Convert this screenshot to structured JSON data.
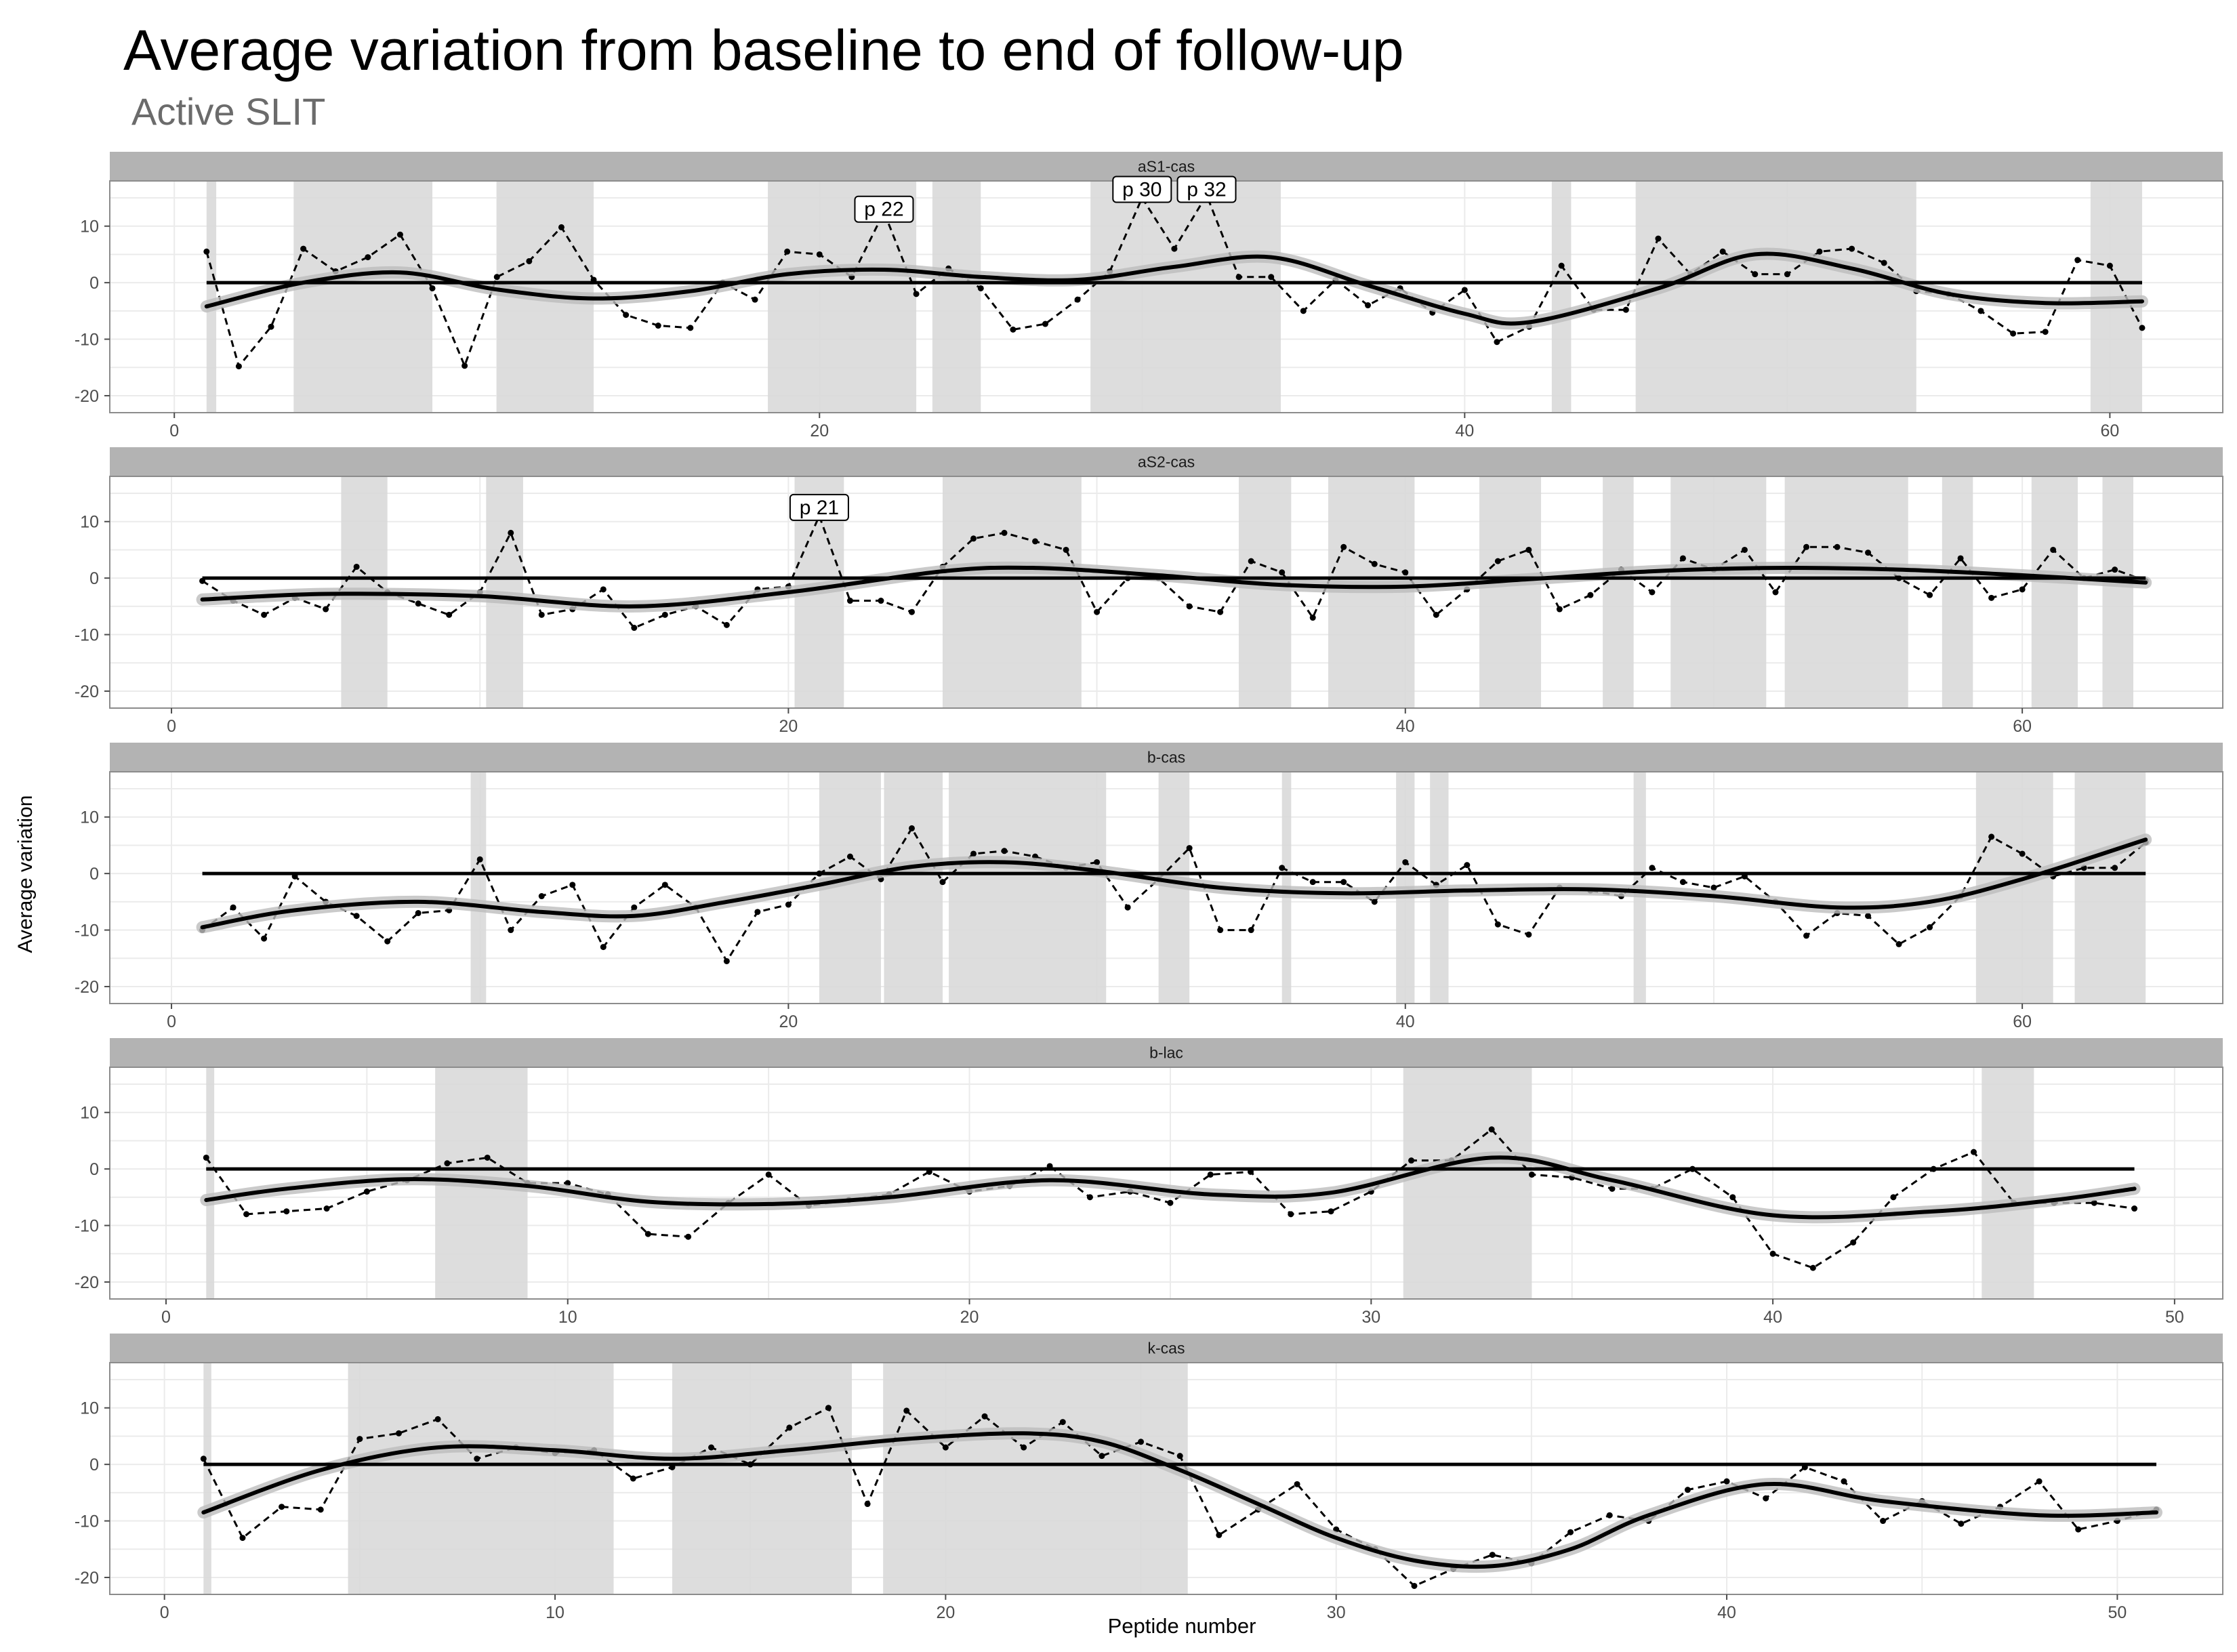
{
  "title": "Average variation from baseline to end of follow-up",
  "subtitle": "Active SLIT",
  "ylabel": "Average variation",
  "xlabel": "Peptide number",
  "colors": {
    "strip": "#b3b3b3",
    "band": "#d9d9d9",
    "line": "#000000",
    "grid": "#ebebeb"
  },
  "chart_data": [
    {
      "type": "line",
      "panel": "aS1-cas",
      "xlim": [
        -2,
        63.5
      ],
      "ylim": [
        -23,
        18
      ],
      "xticks": [
        0,
        20,
        40,
        60
      ],
      "yticks": [
        -20,
        -10,
        0,
        10
      ],
      "highlight_bands": [
        [
          1,
          1.3
        ],
        [
          3.7,
          8
        ],
        [
          10,
          13
        ],
        [
          18.4,
          23
        ],
        [
          23.5,
          25
        ],
        [
          28.4,
          34.3
        ],
        [
          42.7,
          43.3
        ],
        [
          45.3,
          54
        ],
        [
          59.4,
          61
        ]
      ],
      "annotations": [
        {
          "x": 22,
          "y": 13,
          "label": "p 22"
        },
        {
          "x": 30,
          "y": 16.5,
          "label": "p 30"
        },
        {
          "x": 32,
          "y": 16.5,
          "label": "p 32"
        }
      ],
      "series": [
        {
          "style": "dashed",
          "x": [
            1,
            2,
            3,
            4,
            5,
            6,
            7,
            8,
            9,
            10,
            11,
            12,
            13,
            14,
            15,
            16,
            17,
            18,
            19,
            20,
            21,
            22,
            23,
            24,
            25,
            26,
            27,
            28,
            29,
            30,
            31,
            32,
            33,
            34,
            35,
            36,
            37,
            38,
            39,
            40,
            41,
            42,
            43,
            44,
            45,
            46,
            47,
            48,
            49,
            50,
            51,
            52,
            53,
            54,
            55,
            56,
            57,
            58,
            59,
            60,
            61
          ],
          "y": [
            5.5,
            -14.8,
            -7.8,
            6,
            2,
            4.5,
            8.5,
            -1,
            -14.7,
            1,
            3.8,
            9.8,
            0.5,
            -5.7,
            -7.6,
            -8,
            0,
            -3,
            5.5,
            5,
            1,
            12.5,
            -2,
            2.5,
            -1,
            -8.3,
            -7.3,
            -3,
            2,
            15,
            6,
            15.5,
            1,
            1,
            -5,
            0.5,
            -4,
            -1,
            -5.3,
            -1.3,
            -10.5,
            -7.8,
            3,
            -4.8,
            -4.8,
            7.8,
            1.5,
            5.5,
            1.5,
            1.5,
            5.5,
            6,
            3.5,
            -1.5,
            -2,
            -5,
            -9,
            -8.7,
            4,
            3,
            -8
          ]
        },
        {
          "style": "smooth",
          "x": [
            1,
            4,
            7,
            10,
            13,
            16,
            19,
            22,
            25,
            28,
            31,
            34,
            37,
            40,
            42,
            46,
            49,
            52,
            55,
            58,
            61
          ],
          "y": [
            -4.2,
            0,
            1.8,
            -1.2,
            -2.8,
            -1.5,
            1.5,
            2.3,
            1,
            0.5,
            2.8,
            4.5,
            -0.5,
            -5.5,
            -7,
            -1,
            5,
            2.5,
            -2,
            -3.6,
            -3.3
          ]
        },
        {
          "style": "zero",
          "x": [
            1,
            61
          ],
          "y": [
            0,
            0
          ]
        }
      ]
    },
    {
      "type": "line",
      "panel": "aS2-cas",
      "xlim": [
        -2,
        66.5
      ],
      "ylim": [
        -23,
        18
      ],
      "xticks": [
        0,
        20,
        40,
        60
      ],
      "yticks": [
        -20,
        -10,
        0,
        10
      ],
      "highlight_bands": [
        [
          5.5,
          7
        ],
        [
          10.2,
          11.4
        ],
        [
          20.2,
          21.8
        ],
        [
          25,
          29.5
        ],
        [
          34.6,
          36.3
        ],
        [
          37.5,
          40.3
        ],
        [
          42.4,
          44.4
        ],
        [
          46.4,
          47.4
        ],
        [
          48.6,
          51.7
        ],
        [
          52.3,
          56.3
        ],
        [
          57.4,
          58.4
        ],
        [
          60.3,
          61.8
        ],
        [
          62.6,
          63.6
        ]
      ],
      "annotations": [
        {
          "x": 21,
          "y": 12.5,
          "label": "p 21"
        }
      ],
      "series": [
        {
          "style": "dashed",
          "x": [
            1,
            2,
            3,
            4,
            5,
            6,
            7,
            8,
            9,
            10,
            11,
            12,
            13,
            14,
            15,
            16,
            17,
            18,
            19,
            20,
            21,
            22,
            23,
            24,
            25,
            26,
            27,
            28,
            29,
            30,
            31,
            32,
            33,
            34,
            35,
            36,
            37,
            38,
            39,
            40,
            41,
            42,
            43,
            44,
            45,
            46,
            47,
            48,
            49,
            50,
            51,
            52,
            53,
            54,
            55,
            56,
            57,
            58,
            59,
            60,
            61,
            62,
            63,
            64
          ],
          "y": [
            -0.5,
            -4,
            -6.5,
            -3.5,
            -5.5,
            2,
            -2.5,
            -4.5,
            -6.5,
            -2.5,
            8,
            -6.5,
            -5.5,
            -2,
            -8.8,
            -6.5,
            -5,
            -8.3,
            -2,
            -1.5,
            11,
            -4,
            -4,
            -6,
            2,
            7,
            8,
            6.5,
            5,
            -6,
            0,
            0,
            -5,
            -6,
            3,
            1,
            -7,
            5.5,
            2.5,
            1,
            -6.5,
            -2,
            3,
            5,
            -5.5,
            -3,
            1.5,
            -2.5,
            3.5,
            1.5,
            5,
            -2.5,
            5.5,
            5.5,
            4.5,
            0,
            -3,
            3.5,
            -3.5,
            -2,
            5,
            0,
            1.5,
            -0.5
          ]
        },
        {
          "style": "smooth",
          "x": [
            1,
            5,
            10,
            15,
            20,
            25,
            28,
            32,
            36,
            40,
            44,
            48,
            52,
            56,
            60,
            64
          ],
          "y": [
            -3.8,
            -2.8,
            -3.2,
            -5,
            -2.5,
            1.2,
            1.8,
            0.5,
            -1.2,
            -1.5,
            -0.2,
            1.2,
            1.8,
            1.5,
            0.5,
            -0.8
          ]
        },
        {
          "style": "zero",
          "x": [
            1,
            64
          ],
          "y": [
            0,
            0
          ]
        }
      ]
    },
    {
      "type": "line",
      "panel": "b-cas",
      "xlim": [
        -2,
        66.5
      ],
      "ylim": [
        -23,
        18
      ],
      "xticks": [
        0,
        20,
        40,
        60
      ],
      "yticks": [
        -20,
        -10,
        0,
        10
      ],
      "highlight_bands": [
        [
          9.7,
          10.2
        ],
        [
          21,
          23
        ],
        [
          23.1,
          25
        ],
        [
          25.2,
          30.3
        ],
        [
          32,
          33
        ],
        [
          36,
          36.3
        ],
        [
          39.7,
          40.3
        ],
        [
          40.8,
          41.4
        ],
        [
          47.4,
          47.8
        ],
        [
          58.5,
          61
        ],
        [
          61.7,
          64
        ]
      ],
      "annotations": [],
      "series": [
        {
          "style": "dashed",
          "x": [
            1,
            2,
            3,
            4,
            5,
            6,
            7,
            8,
            9,
            10,
            11,
            12,
            13,
            14,
            15,
            16,
            17,
            18,
            19,
            20,
            21,
            22,
            23,
            24,
            25,
            26,
            27,
            28,
            29,
            30,
            31,
            32,
            33,
            34,
            35,
            36,
            37,
            38,
            39,
            40,
            41,
            42,
            43,
            44,
            45,
            46,
            47,
            48,
            49,
            50,
            51,
            52,
            53,
            54,
            55,
            56,
            57,
            58,
            59,
            60,
            61,
            62,
            63,
            64
          ],
          "y": [
            -10,
            -6,
            -11.5,
            -0.5,
            -5,
            -7.5,
            -12,
            -7,
            -6.5,
            2.5,
            -10,
            -4,
            -2,
            -13,
            -6,
            -2,
            -6,
            -15.5,
            -6.8,
            -5.5,
            0,
            3,
            -1,
            8,
            -1.5,
            3.5,
            4,
            3,
            1,
            2,
            -6,
            -1,
            4.5,
            -10,
            -10,
            1,
            -1.5,
            -1.5,
            -5,
            2,
            -2,
            1.5,
            -9,
            -10.8,
            -2.5,
            -3,
            -4,
            1,
            -1.5,
            -2.5,
            -0.5,
            -5,
            -11,
            -7,
            -7.5,
            -12.5,
            -9.5,
            -4,
            6.5,
            3.5,
            -0.5,
            1,
            1,
            5.5
          ]
        },
        {
          "style": "smooth",
          "x": [
            1,
            4,
            8,
            12,
            15,
            18,
            21,
            24,
            27,
            30,
            34,
            38,
            42,
            46,
            50,
            54,
            57,
            60,
            64
          ],
          "y": [
            -9.5,
            -6.5,
            -5,
            -6.8,
            -7.5,
            -5,
            -2,
            1.2,
            2,
            0.5,
            -2.5,
            -3.5,
            -3,
            -2.8,
            -4,
            -6,
            -5,
            -1,
            6
          ]
        },
        {
          "style": "zero",
          "x": [
            1,
            64
          ],
          "y": [
            0,
            0
          ]
        }
      ]
    },
    {
      "type": "line",
      "panel": "b-lac",
      "xlim": [
        -1.4,
        51.2
      ],
      "ylim": [
        -23,
        18
      ],
      "xticks": [
        0,
        10,
        20,
        30,
        40,
        50
      ],
      "yticks": [
        -20,
        -10,
        0,
        10
      ],
      "highlight_bands": [
        [
          1,
          1.2
        ],
        [
          6.7,
          9
        ],
        [
          30.8,
          34
        ],
        [
          45.2,
          46.5
        ]
      ],
      "annotations": [],
      "series": [
        {
          "style": "dashed",
          "x": [
            1,
            2,
            3,
            4,
            5,
            6,
            7,
            8,
            9,
            10,
            11,
            12,
            13,
            14,
            15,
            16,
            17,
            18,
            19,
            20,
            21,
            22,
            23,
            24,
            25,
            26,
            27,
            28,
            29,
            30,
            31,
            32,
            33,
            34,
            35,
            36,
            37,
            38,
            39,
            40,
            41,
            42,
            43,
            44,
            45,
            46,
            47,
            48,
            49
          ],
          "y": [
            2,
            -8,
            -7.5,
            -7,
            -4,
            -2,
            1,
            2,
            -2.5,
            -2.5,
            -4.5,
            -11.5,
            -12,
            -6,
            -1,
            -6.5,
            -5.5,
            -4.5,
            -0.5,
            -4,
            -3,
            0.5,
            -5,
            -4,
            -6,
            -1,
            -0.5,
            -8,
            -7.5,
            -4,
            1.5,
            1.5,
            7,
            -1,
            -1.5,
            -3.5,
            -3.5,
            0,
            -5,
            -15,
            -17.5,
            -13,
            -5,
            0,
            3,
            -6,
            -6,
            -6,
            -7
          ]
        },
        {
          "style": "smooth",
          "x": [
            1,
            3,
            6,
            9,
            12,
            15,
            18,
            22,
            26,
            29,
            33,
            36,
            40,
            44,
            47,
            49
          ],
          "y": [
            -5.5,
            -3.5,
            -1.8,
            -3,
            -5.8,
            -6.2,
            -5,
            -2,
            -4.5,
            -4.2,
            2,
            -2,
            -8.2,
            -7.5,
            -5.5,
            -3.5
          ]
        },
        {
          "style": "zero",
          "x": [
            1,
            49
          ],
          "y": [
            0,
            0
          ]
        }
      ]
    },
    {
      "type": "line",
      "panel": "k-cas",
      "xlim": [
        -1.4,
        52.7
      ],
      "ylim": [
        -23,
        18
      ],
      "xticks": [
        0,
        10,
        20,
        30,
        40,
        50
      ],
      "yticks": [
        -20,
        -10,
        0,
        10
      ],
      "highlight_bands": [
        [
          1,
          1.2
        ],
        [
          4.7,
          11.5
        ],
        [
          13,
          17.6
        ],
        [
          18.4,
          26.2
        ]
      ],
      "annotations": [],
      "series": [
        {
          "style": "dashed",
          "x": [
            1,
            2,
            3,
            4,
            5,
            6,
            7,
            8,
            9,
            10,
            11,
            12,
            13,
            14,
            15,
            16,
            17,
            18,
            19,
            20,
            21,
            22,
            23,
            24,
            25,
            26,
            27,
            28,
            29,
            30,
            31,
            32,
            33,
            34,
            35,
            36,
            37,
            38,
            39,
            40,
            41,
            42,
            43,
            44,
            45,
            46,
            47,
            48,
            49,
            50,
            51
          ],
          "y": [
            1,
            -13,
            -7.5,
            -8,
            4.5,
            5.5,
            8,
            1,
            3,
            2,
            2.5,
            -2.5,
            -0.5,
            3,
            0,
            6.5,
            10,
            -7,
            9.5,
            3,
            8.5,
            3,
            7.5,
            1.5,
            4,
            1.5,
            -12.5,
            -8,
            -3.5,
            -11.5,
            -15,
            -21.5,
            -18.5,
            -16,
            -17.5,
            -12,
            -9,
            -10,
            -4.5,
            -3,
            -6,
            -0.5,
            -3,
            -10,
            -6.5,
            -10.5,
            -7.5,
            -3,
            -11.5,
            -10,
            -8
          ]
        },
        {
          "style": "smooth",
          "x": [
            1,
            4,
            7,
            10,
            13,
            16,
            19,
            22,
            24,
            26,
            28,
            30,
            32,
            34,
            36,
            38,
            41,
            44,
            48,
            51
          ],
          "y": [
            -8.5,
            -1,
            3,
            2.5,
            1,
            2.5,
            4.5,
            5.5,
            4,
            -1,
            -7,
            -13,
            -17,
            -18,
            -15,
            -9,
            -3.5,
            -6.5,
            -9,
            -8.5
          ]
        },
        {
          "style": "zero",
          "x": [
            1,
            51
          ],
          "y": [
            0,
            0
          ]
        }
      ]
    }
  ]
}
